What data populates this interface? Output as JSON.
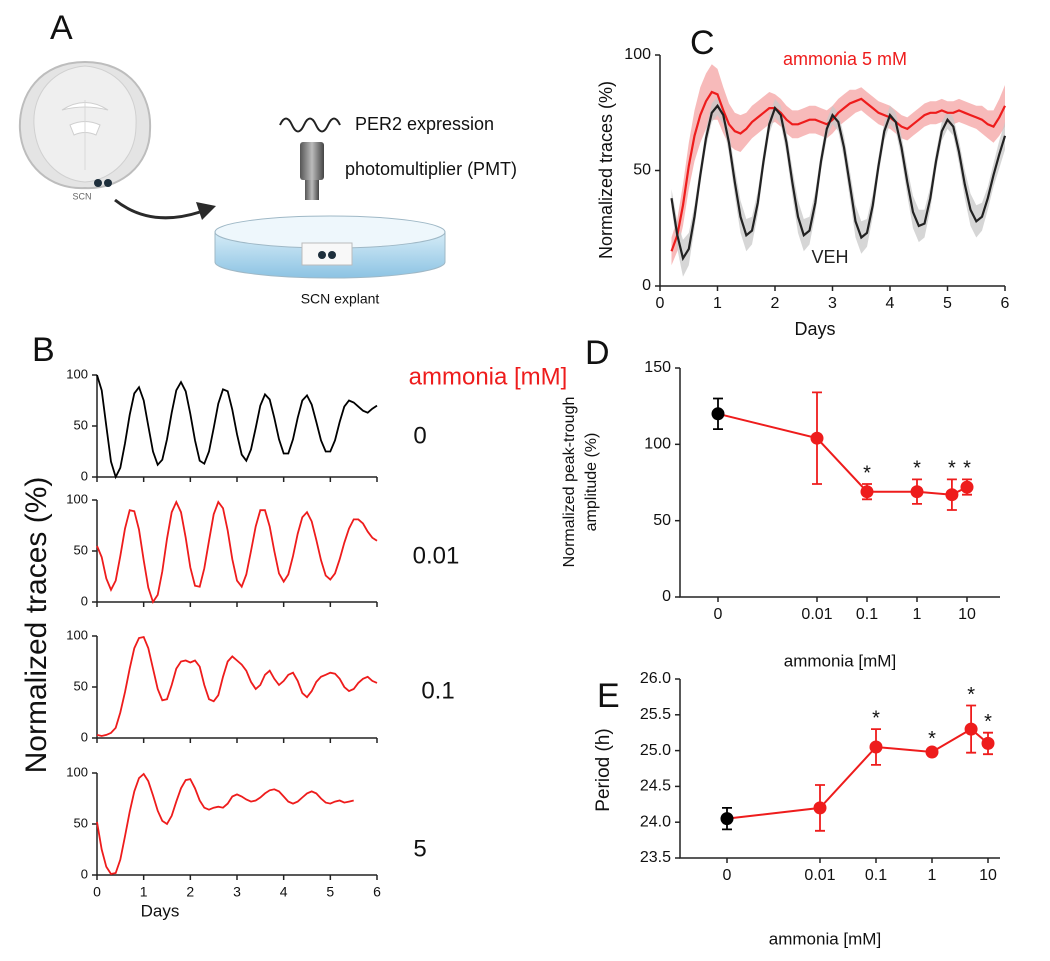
{
  "panel_a": {
    "label": "A",
    "labels": {
      "scn": "SCN",
      "signal": "PER2 expression",
      "detector": "photomultiplier (PMT)",
      "sample": "SCN explant"
    }
  },
  "chart_data": [
    {
      "type": "line",
      "panel": "B",
      "small_multiples": true,
      "ylabel": "Normalized traces (%)",
      "xlabel": "Days",
      "legend_title": "ammonia [mM]",
      "legend_title_color": "#ee1c1c",
      "xlim": [
        0,
        6
      ],
      "xticks": [
        0,
        1,
        2,
        3,
        4,
        5,
        6
      ],
      "ylim": [
        0,
        100
      ],
      "yticks": [
        0,
        50,
        100
      ],
      "x": [
        0,
        0.1,
        0.2,
        0.3,
        0.4,
        0.5,
        0.6,
        0.7,
        0.8,
        0.9,
        1,
        1.1,
        1.2,
        1.3,
        1.4,
        1.5,
        1.6,
        1.7,
        1.8,
        1.9,
        2,
        2.1,
        2.2,
        2.3,
        2.4,
        2.5,
        2.6,
        2.7,
        2.8,
        2.9,
        3,
        3.1,
        3.2,
        3.3,
        3.4,
        3.5,
        3.6,
        3.7,
        3.8,
        3.9,
        4,
        4.1,
        4.2,
        4.3,
        4.4,
        4.5,
        4.6,
        4.7,
        4.8,
        4.9,
        5,
        5.1,
        5.2,
        5.3,
        5.4,
        5.5,
        5.6,
        5.7,
        5.8,
        5.9,
        6
      ],
      "series": [
        {
          "name": "0",
          "color": "#000000",
          "values": [
            100,
            85,
            50,
            15,
            0,
            9,
            33,
            61,
            82,
            88,
            75,
            50,
            25,
            12,
            17,
            37,
            63,
            85,
            93,
            84,
            62,
            36,
            16,
            13,
            25,
            48,
            72,
            86,
            84,
            66,
            42,
            22,
            16,
            27,
            48,
            70,
            81,
            76,
            58,
            37,
            23,
            23,
            37,
            58,
            75,
            80,
            71,
            54,
            36,
            25,
            25,
            36,
            54,
            69,
            75,
            73,
            69,
            65,
            63,
            67,
            70
          ]
        },
        {
          "name": "0.01",
          "color": "#ee1c1c",
          "values": [
            55,
            44,
            23,
            12,
            21,
            45,
            72,
            90,
            89,
            71,
            41,
            14,
            0,
            7,
            30,
            62,
            88,
            98,
            88,
            63,
            34,
            16,
            15,
            33,
            60,
            86,
            98,
            92,
            70,
            42,
            21,
            15,
            27,
            50,
            74,
            90,
            90,
            74,
            50,
            28,
            20,
            27,
            45,
            67,
            83,
            88,
            79,
            61,
            41,
            26,
            22,
            28,
            42,
            58,
            72,
            81,
            81,
            77,
            69,
            63,
            60
          ]
        },
        {
          "name": "0.1",
          "color": "#ee1c1c",
          "values": [
            3,
            2,
            3,
            5,
            10,
            25,
            45,
            68,
            88,
            98,
            99,
            88,
            68,
            48,
            37,
            38,
            52,
            68,
            75,
            76,
            74,
            76,
            70,
            52,
            38,
            36,
            42,
            60,
            75,
            80,
            76,
            72,
            66,
            55,
            48,
            52,
            62,
            66,
            58,
            52,
            56,
            62,
            64,
            56,
            44,
            40,
            46,
            55,
            60,
            62,
            64,
            63,
            58,
            50,
            46,
            48,
            54,
            58,
            60,
            56,
            54
          ]
        },
        {
          "name": "5",
          "color": "#ee1c1c",
          "values": [
            52,
            25,
            8,
            1,
            2,
            15,
            38,
            62,
            82,
            95,
            99,
            92,
            78,
            63,
            53,
            50,
            58,
            72,
            85,
            93,
            94,
            85,
            73,
            66,
            64,
            66,
            67,
            66,
            70,
            77,
            79,
            77,
            74,
            72,
            73,
            76,
            80,
            83,
            84,
            82,
            77,
            72,
            70,
            72,
            76,
            80,
            82,
            80,
            75,
            71,
            70,
            72,
            73,
            71,
            72,
            73,
            null,
            null,
            null,
            null,
            null
          ]
        }
      ]
    },
    {
      "type": "line",
      "panel": "C",
      "ylabel": "Normalized traces (%)",
      "xlabel": "Days",
      "xlim": [
        0,
        6
      ],
      "xticks": [
        0,
        1,
        2,
        3,
        4,
        5,
        6
      ],
      "ylim": [
        0,
        100
      ],
      "yticks": [
        0,
        50,
        100
      ],
      "x": [
        0.2,
        0.3,
        0.4,
        0.5,
        0.6,
        0.7,
        0.8,
        0.9,
        1,
        1.1,
        1.2,
        1.3,
        1.4,
        1.5,
        1.6,
        1.7,
        1.8,
        1.9,
        2,
        2.1,
        2.2,
        2.3,
        2.4,
        2.5,
        2.6,
        2.7,
        2.8,
        2.9,
        3,
        3.1,
        3.2,
        3.3,
        3.4,
        3.5,
        3.6,
        3.7,
        3.8,
        3.9,
        4,
        4.1,
        4.2,
        4.3,
        4.4,
        4.5,
        4.6,
        4.7,
        4.8,
        4.9,
        5,
        5.1,
        5.2,
        5.3,
        5.4,
        5.5,
        5.6,
        5.7,
        5.8,
        5.9,
        6
      ],
      "series": [
        {
          "name": "ammonia 5 mM",
          "color": "#ee1c1c",
          "band_color": "#f4a3a3",
          "values": [
            15,
            22,
            35,
            52,
            65,
            74,
            80,
            84,
            83,
            76,
            70,
            67,
            66,
            68,
            71,
            73,
            75,
            77,
            77,
            75,
            72,
            70,
            70,
            71,
            72,
            72,
            71,
            70,
            72,
            75,
            77,
            79,
            80,
            81,
            79,
            77,
            75,
            74,
            73,
            71,
            69,
            68,
            70,
            72,
            74,
            75,
            75,
            76,
            75,
            75,
            76,
            75,
            74,
            73,
            72,
            70,
            69,
            73,
            78
          ],
          "errors": [
            6,
            7,
            9,
            10,
            11,
            12,
            12,
            12,
            11,
            10,
            9,
            8,
            8,
            7,
            7,
            7,
            7,
            7,
            6,
            6,
            6,
            6,
            6,
            6,
            6,
            6,
            6,
            6,
            6,
            6,
            6,
            6,
            5,
            5,
            5,
            5,
            5,
            5,
            5,
            5,
            5,
            5,
            5,
            5,
            5,
            5,
            5,
            5,
            5,
            5,
            5,
            5,
            5,
            5,
            6,
            6,
            7,
            8,
            9
          ]
        },
        {
          "name": "VEH",
          "color": "#222222",
          "band_color": "#c8c8c8",
          "values": [
            38,
            22,
            12,
            16,
            30,
            48,
            64,
            75,
            78,
            74,
            62,
            45,
            30,
            22,
            24,
            36,
            54,
            70,
            77,
            74,
            62,
            45,
            30,
            22,
            24,
            36,
            54,
            68,
            74,
            71,
            60,
            44,
            28,
            21,
            23,
            35,
            52,
            67,
            74,
            71,
            60,
            45,
            32,
            26,
            27,
            38,
            54,
            67,
            72,
            69,
            58,
            44,
            33,
            28,
            30,
            38,
            48,
            57,
            65
          ],
          "errors": [
            4,
            6,
            8,
            7,
            5,
            4,
            4,
            4,
            4,
            4,
            5,
            6,
            7,
            7,
            6,
            5,
            4,
            4,
            4,
            4,
            5,
            6,
            7,
            7,
            6,
            5,
            4,
            4,
            4,
            4,
            5,
            6,
            7,
            7,
            6,
            5,
            4,
            4,
            4,
            4,
            5,
            6,
            7,
            7,
            6,
            5,
            4,
            4,
            4,
            4,
            5,
            6,
            7,
            7,
            6,
            5,
            5,
            6,
            6
          ]
        }
      ]
    },
    {
      "type": "errorbar",
      "panel": "D",
      "ylabel": [
        "Normalized peak-trough",
        "amplitude (%)"
      ],
      "xlabel": "ammonia [mM]",
      "xscale": "log",
      "x": [
        0,
        0.01,
        0.1,
        1,
        5,
        10
      ],
      "xticks": [
        0,
        0.01,
        0.1,
        1,
        10
      ],
      "ylim": [
        0,
        150
      ],
      "yticks": [
        0,
        50,
        100,
        150
      ],
      "values": [
        120,
        104,
        69,
        69,
        67,
        72
      ],
      "errors": [
        10,
        30,
        5,
        8,
        10,
        5
      ],
      "colors": [
        "#000000",
        "#ee1c1c",
        "#ee1c1c",
        "#ee1c1c",
        "#ee1c1c",
        "#ee1c1c"
      ],
      "line_color": "#ee1c1c",
      "annotations": [
        {
          "text": "*",
          "x": 0.1
        },
        {
          "text": "*",
          "x": 1
        },
        {
          "text": "*",
          "x": 5
        },
        {
          "text": "*",
          "x": 10
        }
      ]
    },
    {
      "type": "errorbar",
      "panel": "E",
      "ylabel": [
        "Period (h)"
      ],
      "xlabel": "ammonia [mM]",
      "xscale": "log",
      "x": [
        0,
        0.01,
        0.1,
        1,
        5,
        10
      ],
      "xticks": [
        0,
        0.01,
        0.1,
        1,
        10
      ],
      "ylim": [
        23.5,
        26
      ],
      "yticks": [
        23.5,
        {
          "value": 24,
          "label": "24.0"
        },
        24.5,
        {
          "value": 25,
          "label": "25.0"
        },
        25.5,
        {
          "value": 26,
          "label": "26.0"
        }
      ],
      "values": [
        24.05,
        24.2,
        25.05,
        24.98,
        25.3,
        25.1
      ],
      "errors": [
        0.15,
        0.32,
        0.25,
        0.03,
        0.33,
        0.15
      ],
      "colors": [
        "#000000",
        "#ee1c1c",
        "#ee1c1c",
        "#ee1c1c",
        "#ee1c1c",
        "#ee1c1c"
      ],
      "line_color": "#ee1c1c",
      "annotations": [
        {
          "text": "*",
          "x": 0.1
        },
        {
          "text": "*",
          "x": 1
        },
        {
          "text": "*",
          "x": 5
        },
        {
          "text": "*",
          "x": 10
        }
      ]
    }
  ]
}
